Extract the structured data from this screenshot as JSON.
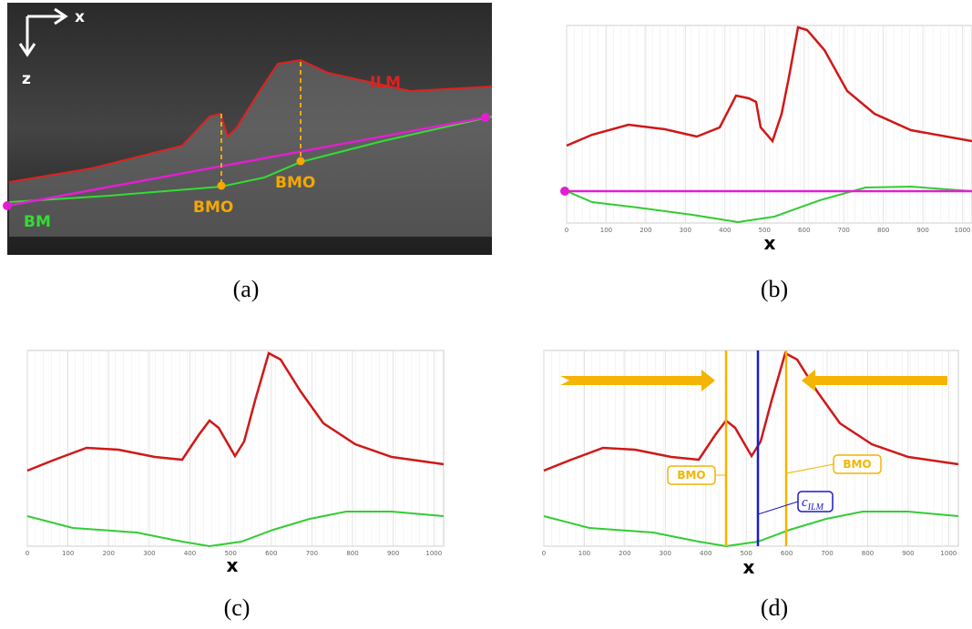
{
  "panels": [
    {
      "caption": "(a)",
      "x_axis": "x",
      "z_axis": "z",
      "ilm": "ILM",
      "bmo_left": "BMO",
      "bmo_right": "BMO",
      "bm": "BM"
    },
    {
      "caption": "(b)",
      "x_label": "x",
      "xticks": [
        0,
        100,
        200,
        300,
        400,
        500,
        600,
        700,
        800,
        900,
        1000
      ]
    },
    {
      "caption": "(c)",
      "x_label": "x",
      "xticks": [
        0,
        100,
        200,
        300,
        400,
        500,
        600,
        700,
        800,
        900,
        1000
      ]
    },
    {
      "caption": "(d)",
      "x_label": "x",
      "xticks": [
        0,
        100,
        200,
        300,
        400,
        500,
        600,
        700,
        800,
        900,
        1000
      ],
      "bmo_left": "BMO",
      "bmo_right": "BMO",
      "center_symbol": "c",
      "center_subscript": "ILM"
    }
  ]
}
